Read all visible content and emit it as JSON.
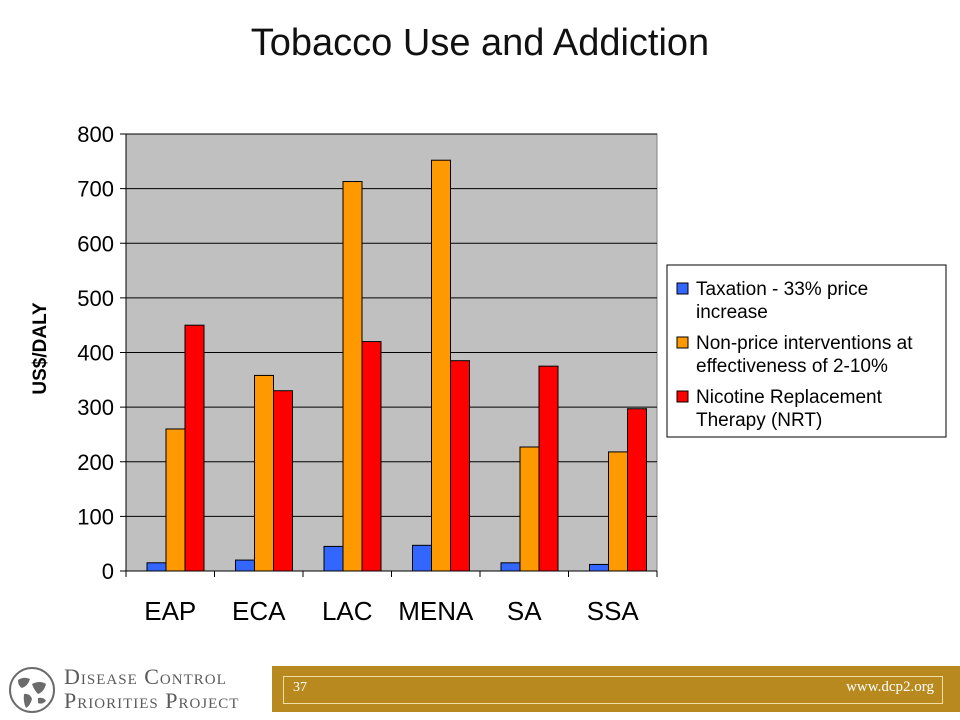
{
  "slide": {
    "title": "Tobacco Use and Addiction",
    "page_number": "37",
    "website": "www.dcp2.org",
    "org_name_line1": "Disease Control",
    "org_name_line2": "Priorities Project",
    "logo_icon": "globe-icon",
    "band_color": "#b8891f"
  },
  "chart_data": {
    "type": "bar",
    "title": "",
    "xlabel": "",
    "ylabel": "US$/DALY",
    "ylim": [
      0,
      800
    ],
    "yticks": [
      0,
      100,
      200,
      300,
      400,
      500,
      600,
      700,
      800
    ],
    "grid": true,
    "legend_position": "right",
    "plot_background": "#c0c0c0",
    "categories": [
      "EAP",
      "ECA",
      "LAC",
      "MENA",
      "SA",
      "SSA"
    ],
    "series": [
      {
        "name": "Taxation - 33% price increase",
        "label_lines": [
          "Taxation - 33% price",
          "increase"
        ],
        "color": "#3366ff",
        "values": [
          15,
          20,
          45,
          47,
          15,
          12
        ]
      },
      {
        "name": "Non-price interventions at effectiveness of 2-10%",
        "label_lines": [
          "Non-price interventions at",
          "effectiveness of 2-10%"
        ],
        "color": "#ff9900",
        "values": [
          260,
          358,
          713,
          752,
          227,
          218
        ]
      },
      {
        "name": "Nicotine Replacement Therapy (NRT)",
        "label_lines": [
          "Nicotine Replacement",
          "Therapy (NRT)"
        ],
        "color": "#ff0000",
        "values": [
          450,
          330,
          420,
          385,
          375,
          297
        ]
      }
    ]
  }
}
